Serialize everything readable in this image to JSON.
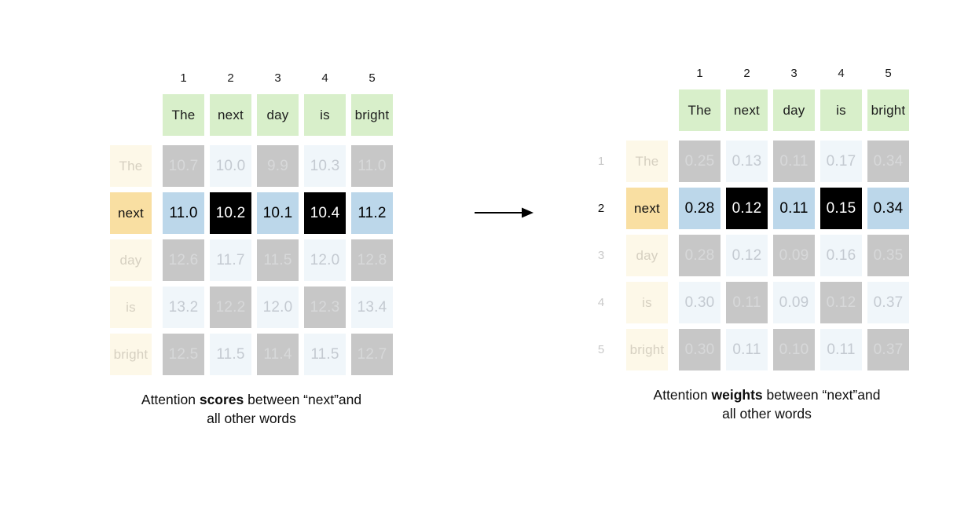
{
  "palette": {
    "green": "#d8efca",
    "orange": "#f9dfa2",
    "cream": "#fdf8e8",
    "blue": "#bcd7ea",
    "black": "#000000",
    "gray": "#c7c7c7",
    "light": "#f0f6fa",
    "grayText": "#d7d8d9",
    "lightText": "#c4cad1",
    "creamText": "#d6d0c1"
  },
  "arrow": {
    "icon": "right-arrow",
    "color": "#000000"
  },
  "matrices": [
    {
      "id": "attention-scores",
      "row_numbers": false,
      "col_numbers": [
        "1",
        "2",
        "3",
        "4",
        "5"
      ],
      "col_words": [
        "The",
        "next",
        "day",
        "is",
        "bright"
      ],
      "rows": [
        {
          "num": "1",
          "label": "The",
          "active": false,
          "cells": [
            {
              "v": "10.7",
              "s": "gray"
            },
            {
              "v": "10.0",
              "s": "light"
            },
            {
              "v": "9.9",
              "s": "gray"
            },
            {
              "v": "10.3",
              "s": "light"
            },
            {
              "v": "11.0",
              "s": "gray"
            }
          ]
        },
        {
          "num": "2",
          "label": "next",
          "active": true,
          "cells": [
            {
              "v": "11.0",
              "s": "blue"
            },
            {
              "v": "10.2",
              "s": "black"
            },
            {
              "v": "10.1",
              "s": "blue"
            },
            {
              "v": "10.4",
              "s": "black"
            },
            {
              "v": "11.2",
              "s": "blue"
            }
          ]
        },
        {
          "num": "3",
          "label": "day",
          "active": false,
          "cells": [
            {
              "v": "12.6",
              "s": "gray"
            },
            {
              "v": "11.7",
              "s": "light"
            },
            {
              "v": "11.5",
              "s": "gray"
            },
            {
              "v": "12.0",
              "s": "light"
            },
            {
              "v": "12.8",
              "s": "gray"
            }
          ]
        },
        {
          "num": "4",
          "label": "is",
          "active": false,
          "cells": [
            {
              "v": "13.2",
              "s": "light"
            },
            {
              "v": "12.2",
              "s": "gray"
            },
            {
              "v": "12.0",
              "s": "light"
            },
            {
              "v": "12.3",
              "s": "gray"
            },
            {
              "v": "13.4",
              "s": "light"
            }
          ]
        },
        {
          "num": "5",
          "label": "bright",
          "active": false,
          "cells": [
            {
              "v": "12.5",
              "s": "gray"
            },
            {
              "v": "11.5",
              "s": "light"
            },
            {
              "v": "11.4",
              "s": "gray"
            },
            {
              "v": "11.5",
              "s": "light"
            },
            {
              "v": "12.7",
              "s": "gray"
            }
          ]
        }
      ],
      "caption": {
        "prefix": "Attention ",
        "bold": "scores",
        "line1_suffix": " between “next”and",
        "line2": "all other words"
      }
    },
    {
      "id": "attention-weights",
      "row_numbers": true,
      "col_numbers": [
        "1",
        "2",
        "3",
        "4",
        "5"
      ],
      "col_words": [
        "The",
        "next",
        "day",
        "is",
        "bright"
      ],
      "rows": [
        {
          "num": "1",
          "label": "The",
          "active": false,
          "cells": [
            {
              "v": "0.25",
              "s": "gray"
            },
            {
              "v": "0.13",
              "s": "light"
            },
            {
              "v": "0.11",
              "s": "gray"
            },
            {
              "v": "0.17",
              "s": "light"
            },
            {
              "v": "0.34",
              "s": "gray"
            }
          ]
        },
        {
          "num": "2",
          "label": "next",
          "active": true,
          "cells": [
            {
              "v": "0.28",
              "s": "blue"
            },
            {
              "v": "0.12",
              "s": "black"
            },
            {
              "v": "0.11",
              "s": "blue"
            },
            {
              "v": "0.15",
              "s": "black"
            },
            {
              "v": "0.34",
              "s": "blue"
            }
          ]
        },
        {
          "num": "3",
          "label": "day",
          "active": false,
          "cells": [
            {
              "v": "0.28",
              "s": "gray"
            },
            {
              "v": "0.12",
              "s": "light"
            },
            {
              "v": "0.09",
              "s": "gray"
            },
            {
              "v": "0.16",
              "s": "light"
            },
            {
              "v": "0.35",
              "s": "gray"
            }
          ]
        },
        {
          "num": "4",
          "label": "is",
          "active": false,
          "cells": [
            {
              "v": "0.30",
              "s": "light"
            },
            {
              "v": "0.11",
              "s": "gray"
            },
            {
              "v": "0.09",
              "s": "light"
            },
            {
              "v": "0.12",
              "s": "gray"
            },
            {
              "v": "0.37",
              "s": "light"
            }
          ]
        },
        {
          "num": "5",
          "label": "bright",
          "active": false,
          "cells": [
            {
              "v": "0.30",
              "s": "gray"
            },
            {
              "v": "0.11",
              "s": "light"
            },
            {
              "v": "0.10",
              "s": "gray"
            },
            {
              "v": "0.11",
              "s": "light"
            },
            {
              "v": "0.37",
              "s": "gray"
            }
          ]
        }
      ],
      "caption": {
        "prefix": "Attention ",
        "bold": "weights",
        "line1_suffix": " between “next”and",
        "line2": "all other words"
      }
    }
  ]
}
